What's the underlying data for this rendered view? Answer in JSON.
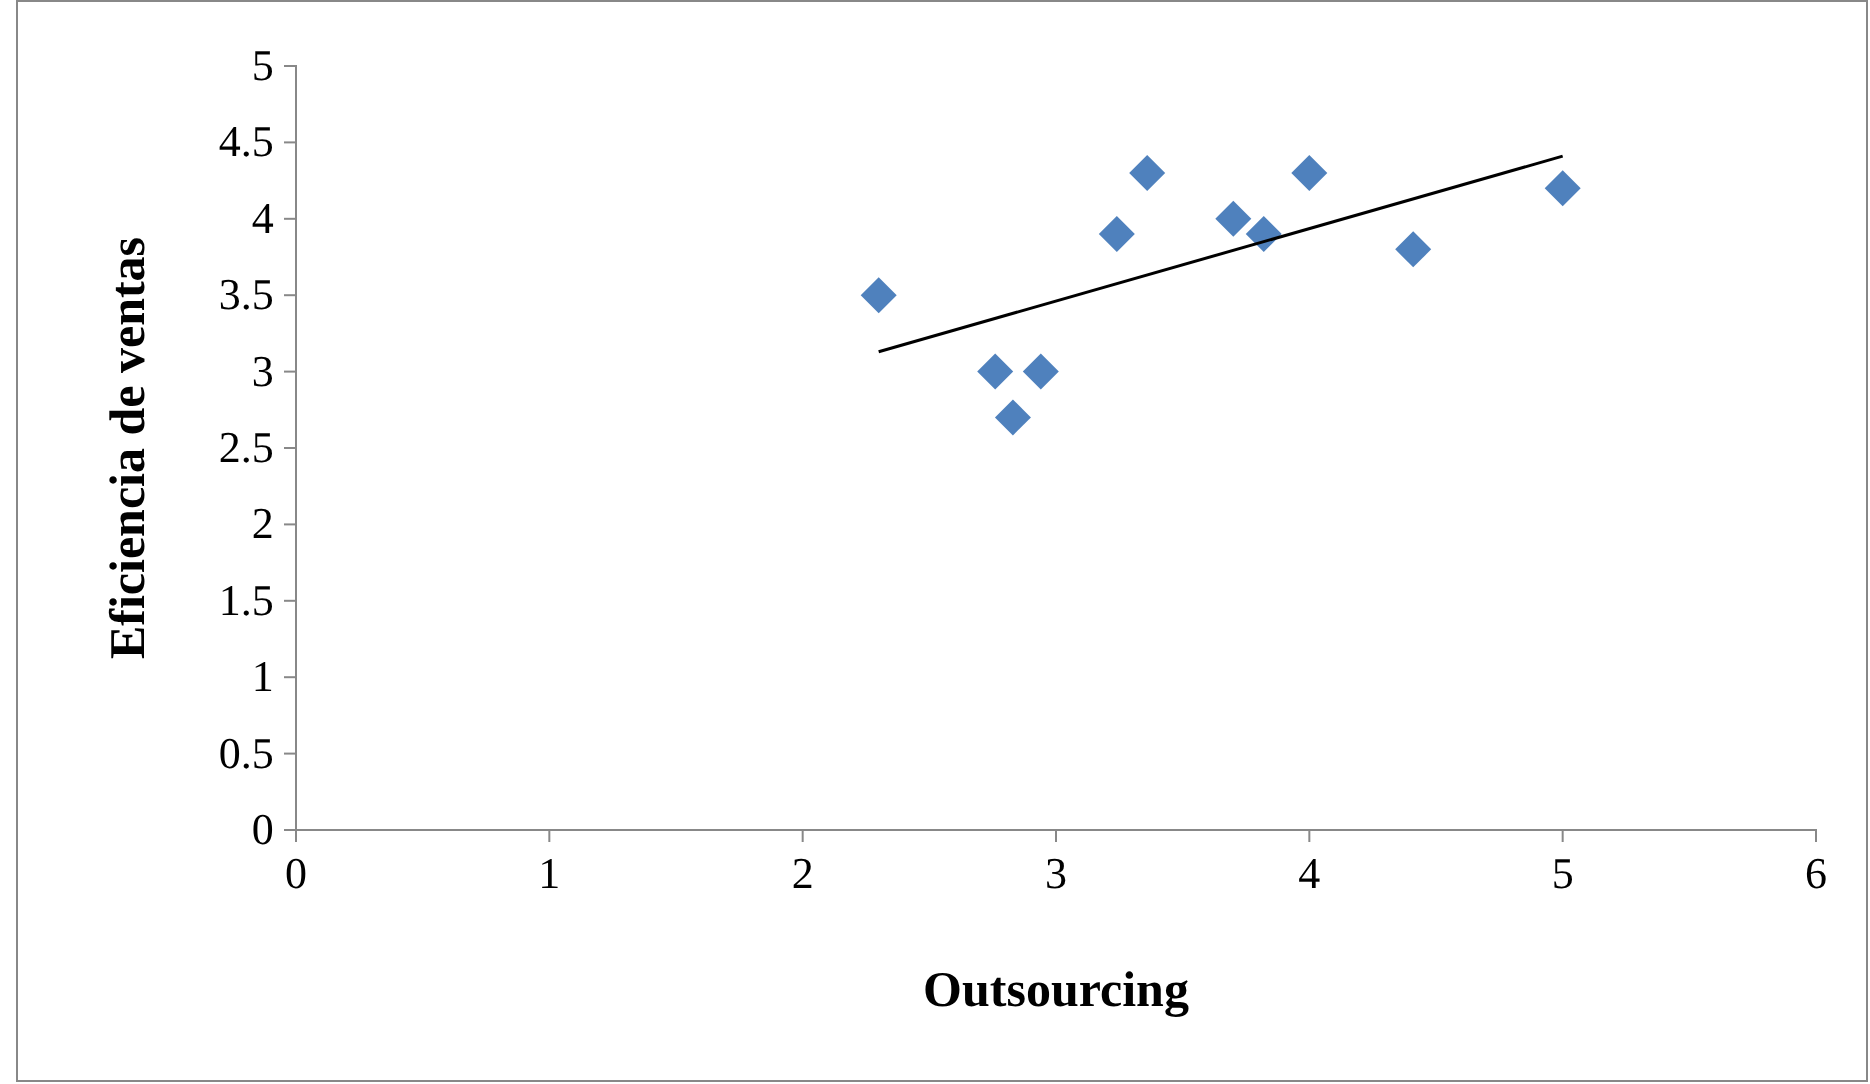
{
  "chart_data": {
    "type": "scatter",
    "xlabel": "Outsourcing",
    "ylabel": "Eficiencia de ventas",
    "xlim": [
      0,
      6
    ],
    "xticks": [
      0,
      1,
      2,
      3,
      4,
      5,
      6
    ],
    "ylim": [
      0,
      5
    ],
    "yticks": [
      0,
      0.5,
      1,
      1.5,
      2,
      2.5,
      3,
      3.5,
      4,
      4.5,
      5
    ],
    "grid": false,
    "marker": "diamond",
    "series": [
      {
        "color": "#4f81bd",
        "x": [
          2.3,
          2.76,
          2.83,
          2.94,
          3.24,
          3.36,
          3.7,
          3.82,
          4.0,
          4.41,
          5.0
        ],
        "values": [
          3.5,
          3.0,
          2.7,
          3.0,
          3.9,
          4.3,
          4.0,
          3.9,
          4.3,
          3.8,
          4.2
        ]
      },
      {
        "type": "line",
        "color": "#000000",
        "x": [
          2.3,
          5.0
        ],
        "values": [
          3.13,
          4.41
        ],
        "marker": "none",
        "line_style": "solid"
      }
    ]
  }
}
